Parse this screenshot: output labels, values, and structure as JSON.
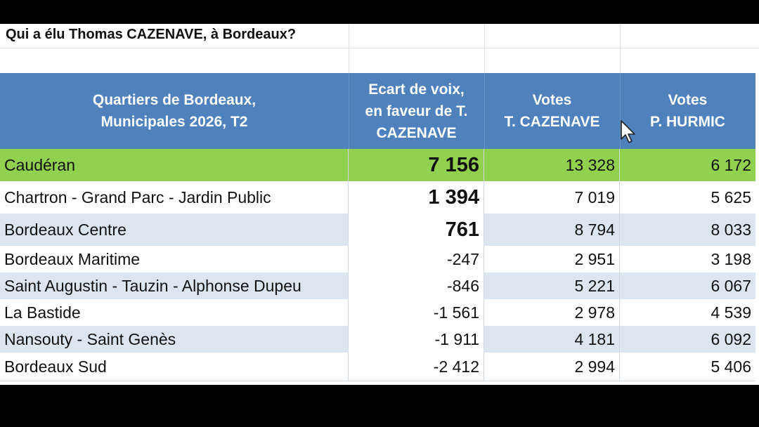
{
  "sheet": {
    "title": "Qui a élu Thomas CAZENAVE, à Bordeaux?",
    "colors": {
      "header": "#4f81bd",
      "highlight": "#92d050",
      "band": "#dce6f1"
    },
    "headers": [
      "Quartiers de Bordeaux,\nMunicipales 2026, T2",
      "Ecart de voix,\nen faveur de T.\nCAZENAVE",
      "Votes\nT. CAZENAVE",
      "Votes\nP. HURMIC"
    ],
    "rows": [
      {
        "quartier": "Caudéran",
        "ecart": "7 156",
        "cazenave": "13 328",
        "hurmic": "6 172"
      },
      {
        "quartier": "Chartron - Grand Parc - Jardin Public",
        "ecart": "1 394",
        "cazenave": "7 019",
        "hurmic": "5 625"
      },
      {
        "quartier": "Bordeaux Centre",
        "ecart": "761",
        "cazenave": "8 794",
        "hurmic": "8 033"
      },
      {
        "quartier": "Bordeaux Maritime",
        "ecart": "-247",
        "cazenave": "2 951",
        "hurmic": "3 198"
      },
      {
        "quartier": "Saint Augustin - Tauzin - Alphonse Dupeu",
        "ecart": "-846",
        "cazenave": "5 221",
        "hurmic": "6 067"
      },
      {
        "quartier": "La Bastide",
        "ecart": "-1 561",
        "cazenave": "2 978",
        "hurmic": "4 539"
      },
      {
        "quartier": "Nansouty - Saint Genès",
        "ecart": "-1 911",
        "cazenave": "4 181",
        "hurmic": "6 092"
      },
      {
        "quartier": "Bordeaux Sud",
        "ecart": "-2 412",
        "cazenave": "2 994",
        "hurmic": "5 406"
      }
    ]
  },
  "cursor_icon": "mouse-pointer-icon"
}
